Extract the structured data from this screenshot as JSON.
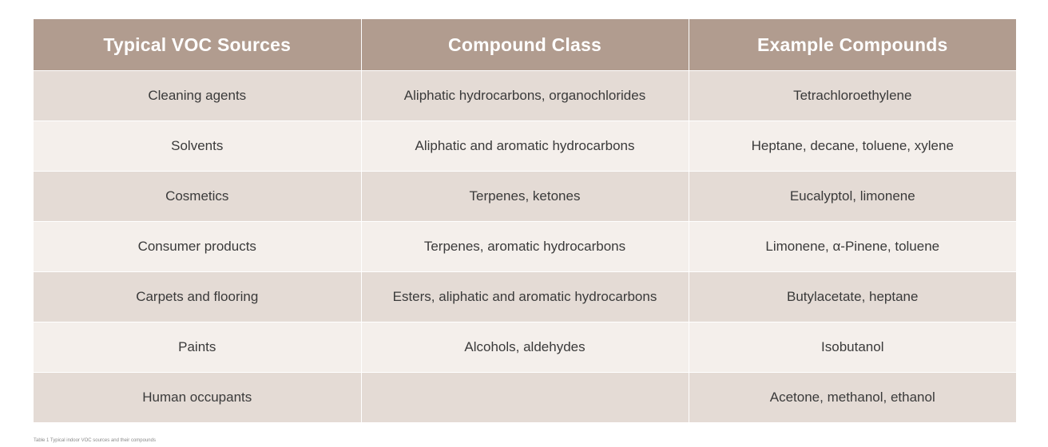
{
  "table": {
    "headers": [
      "Typical VOC Sources",
      "Compound Class",
      "Example Compounds"
    ],
    "rows": [
      [
        "Cleaning agents",
        "Aliphatic hydrocarbons, organochlorides",
        "Tetrachloroethylene"
      ],
      [
        "Solvents",
        "Aliphatic and aromatic hydrocarbons",
        "Heptane, decane, toluene, xylene"
      ],
      [
        "Cosmetics",
        "Terpenes, ketones",
        "Eucalyptol, limonene"
      ],
      [
        "Consumer products",
        "Terpenes, aromatic hydrocarbons",
        "Limonene, α-Pinene, toluene"
      ],
      [
        "Carpets and flooring",
        "Esters, aliphatic and aromatic hydrocarbons",
        "Butylacetate, heptane"
      ],
      [
        "Paints",
        "Alcohols, aldehydes",
        "Isobutanol"
      ],
      [
        "Human occupants",
        "",
        "Acetone, methanol, ethanol"
      ]
    ]
  },
  "caption": "Table 1 Typical indoor VOC sources and their compounds",
  "colors": {
    "header_bg": "#b19c8f",
    "row_dark": "#e4dbd5",
    "row_light": "#f4efeb",
    "text": "#3a3a3a"
  }
}
